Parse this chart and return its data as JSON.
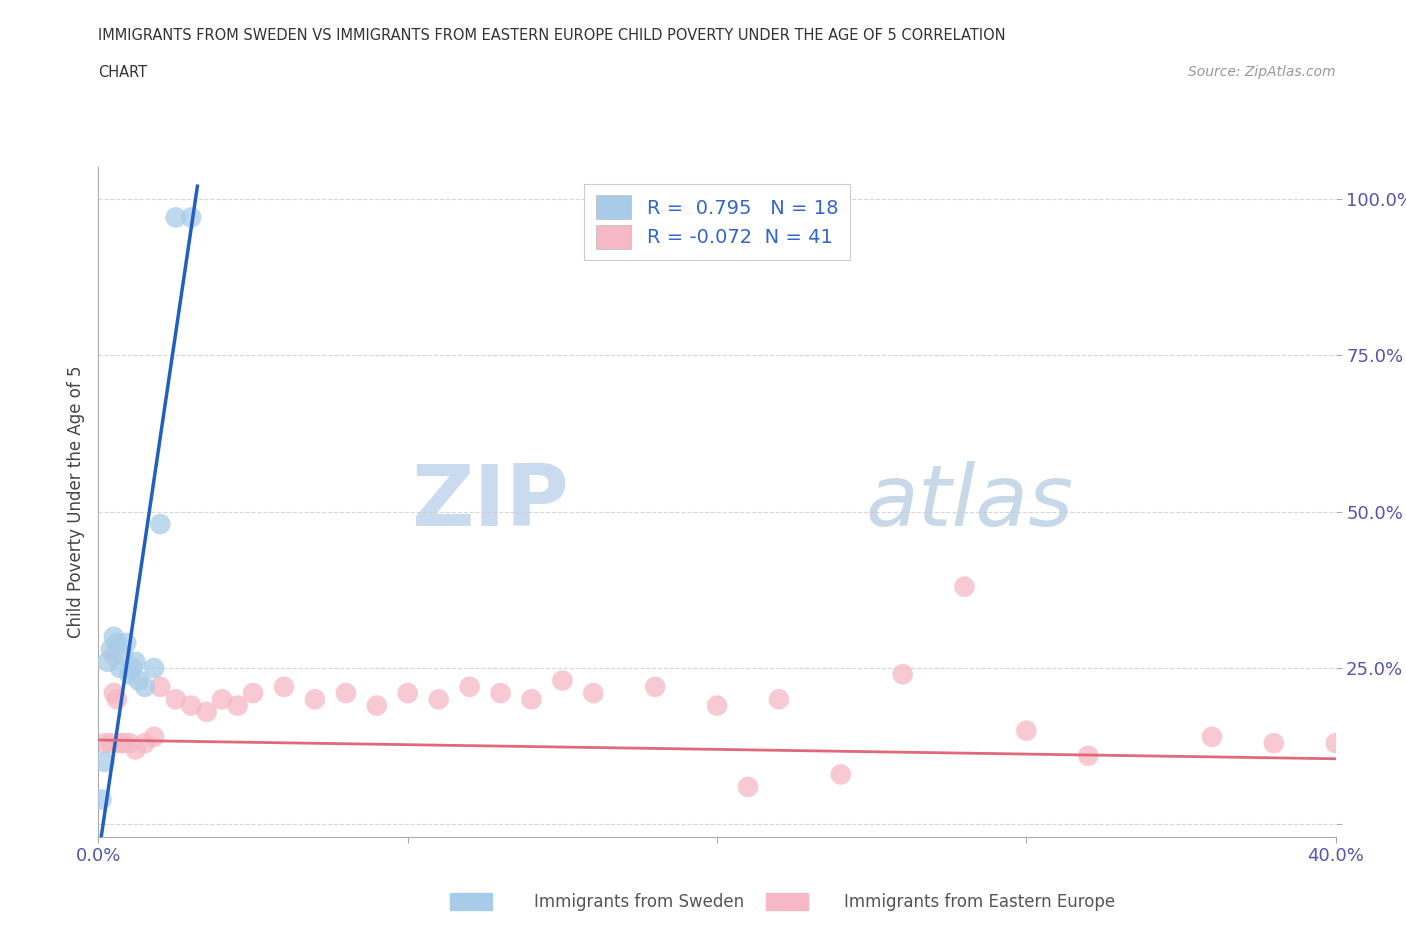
{
  "title_line1": "IMMIGRANTS FROM SWEDEN VS IMMIGRANTS FROM EASTERN EUROPE CHILD POVERTY UNDER THE AGE OF 5 CORRELATION",
  "title_line2": "CHART",
  "source": "Source: ZipAtlas.com",
  "ylabel": "Child Poverty Under the Age of 5",
  "legend_label1": "Immigrants from Sweden",
  "legend_label2": "Immigrants from Eastern Europe",
  "R1": 0.795,
  "N1": 18,
  "R2": -0.072,
  "N2": 41,
  "color_blue": "#a8cce8",
  "color_pink": "#f5b8c4",
  "line_blue": "#2060c0",
  "line_pink": "#e06878",
  "xlim": [
    0.0,
    0.4
  ],
  "ylim": [
    -0.02,
    1.05
  ],
  "xticks": [
    0.0,
    0.1,
    0.2,
    0.3,
    0.4
  ],
  "yticks": [
    0.0,
    0.25,
    0.5,
    0.75,
    1.0
  ],
  "watermark_zip": "ZIP",
  "watermark_atlas": "atlas",
  "blue_points_x": [
    0.001,
    0.002,
    0.003,
    0.004,
    0.005,
    0.006,
    0.007,
    0.008,
    0.009,
    0.01,
    0.011,
    0.012,
    0.013,
    0.015,
    0.018,
    0.02,
    0.025,
    0.03
  ],
  "blue_points_y": [
    0.04,
    0.1,
    0.26,
    0.28,
    0.3,
    0.29,
    0.25,
    0.27,
    0.29,
    0.24,
    0.25,
    0.26,
    0.23,
    0.22,
    0.25,
    0.48,
    0.97,
    0.97
  ],
  "blue_line_x": [
    0.0,
    0.032
  ],
  "blue_line_y": [
    -0.05,
    1.02
  ],
  "pink_points_x": [
    0.002,
    0.004,
    0.005,
    0.006,
    0.007,
    0.008,
    0.01,
    0.012,
    0.015,
    0.018,
    0.02,
    0.025,
    0.03,
    0.035,
    0.04,
    0.045,
    0.05,
    0.06,
    0.07,
    0.08,
    0.09,
    0.1,
    0.11,
    0.12,
    0.13,
    0.14,
    0.15,
    0.16,
    0.18,
    0.2,
    0.21,
    0.22,
    0.24,
    0.26,
    0.28,
    0.3,
    0.32,
    0.36,
    0.38,
    0.4,
    0.005
  ],
  "pink_points_y": [
    0.13,
    0.13,
    0.27,
    0.2,
    0.13,
    0.13,
    0.13,
    0.12,
    0.13,
    0.14,
    0.22,
    0.2,
    0.19,
    0.18,
    0.2,
    0.19,
    0.21,
    0.22,
    0.2,
    0.21,
    0.19,
    0.21,
    0.2,
    0.22,
    0.21,
    0.2,
    0.23,
    0.21,
    0.22,
    0.19,
    0.06,
    0.2,
    0.08,
    0.24,
    0.38,
    0.15,
    0.11,
    0.14,
    0.13,
    0.13,
    0.21
  ],
  "pink_line_x": [
    0.0,
    0.4
  ],
  "pink_line_y": [
    0.135,
    0.105
  ]
}
